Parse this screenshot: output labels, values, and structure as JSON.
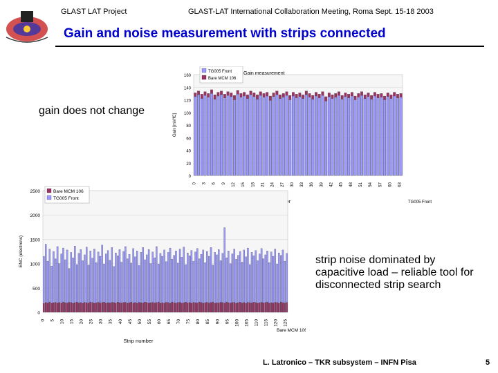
{
  "header": {
    "left": "GLAST LAT Project",
    "right": "GLAST-LAT International Collaboration Meeting, Roma Sept. 15-18 2003"
  },
  "slide": {
    "title": "Gain and noise measurement with strips connected",
    "gain_caption": "gain does not change",
    "noise_caption": "strip noise dominated by capacitive load – reliable tool for disconnected strip search"
  },
  "footer": {
    "credit": "L. Latronico – TKR subsystem – INFN Pisa",
    "page": "5"
  },
  "colors": {
    "title": "#0000cc",
    "bar_front": "#9999ff",
    "bar_bare": "#993366"
  },
  "chart_data": [
    {
      "type": "bar",
      "title": "Gain measurement",
      "ylabel": "Gain [mV/fC]",
      "xlabel": "Strip number",
      "ylim": [
        0,
        160
      ],
      "yticks": [
        0,
        20,
        40,
        60,
        80,
        100,
        120,
        140,
        160
      ],
      "xticks": [
        "0",
        "3",
        "6",
        "9",
        "12",
        "15",
        "18",
        "21",
        "24",
        "27",
        "30",
        "33",
        "36",
        "39",
        "42",
        "45",
        "48",
        "51",
        "54",
        "57",
        "60",
        "63"
      ],
      "legend": [
        "TG005 Front",
        "Bare MCM 106"
      ],
      "back_label": "TG005 Front",
      "series": [
        {
          "name": "TG005 Front",
          "values": [
            125,
            128,
            122,
            127,
            124,
            130,
            121,
            126,
            128,
            123,
            127,
            125,
            120,
            129,
            124,
            126,
            122,
            128,
            125,
            121,
            127,
            124,
            126,
            119,
            125,
            128,
            122,
            124,
            127,
            120,
            126,
            123,
            125,
            122,
            128,
            124,
            121,
            126,
            123,
            127,
            118,
            125,
            122,
            124,
            127,
            121,
            125,
            123,
            126,
            120,
            124,
            127,
            122,
            125,
            121,
            126,
            123,
            124,
            120,
            125,
            122,
            126,
            123,
            124
          ]
        },
        {
          "name": "Bare MCM 106",
          "values": [
            131,
            134,
            129,
            133,
            130,
            136,
            128,
            132,
            134,
            129,
            133,
            131,
            127,
            135,
            130,
            132,
            128,
            134,
            131,
            128,
            133,
            130,
            132,
            126,
            131,
            134,
            128,
            130,
            133,
            127,
            132,
            129,
            131,
            128,
            134,
            130,
            127,
            132,
            129,
            133,
            125,
            131,
            128,
            130,
            133,
            127,
            131,
            129,
            132,
            126,
            130,
            133,
            128,
            131,
            127,
            132,
            129,
            130,
            126,
            131,
            128,
            132,
            129,
            130
          ]
        }
      ]
    },
    {
      "type": "bar",
      "title": "",
      "ylabel": "ENC (electrons)",
      "xlabel": "Strip number",
      "ylim": [
        0,
        2500
      ],
      "yticks": [
        0,
        500,
        1000,
        1500,
        2000,
        2500
      ],
      "xticks": [
        "0",
        "5",
        "10",
        "15",
        "20",
        "25",
        "30",
        "35",
        "40",
        "45",
        "50",
        "55",
        "60",
        "65",
        "70",
        "75",
        "80",
        "85",
        "90",
        "95",
        "100",
        "105",
        "110",
        "115",
        "120",
        "125"
      ],
      "legend": [
        "Bare MCM 106",
        "TG005 Front"
      ],
      "back_label": "Bare MCM 106",
      "series": [
        {
          "name": "TG005 Front",
          "values": [
            1150,
            1400,
            1050,
            1300,
            950,
            1250,
            1100,
            1350,
            1000,
            1200,
            1320,
            1080,
            1280,
            900,
            1230,
            1120,
            1360,
            980,
            1210,
            1290,
            1060,
            1180,
            1340,
            970,
            1260,
            1110,
            1300,
            1020,
            1240,
            1150,
            1380,
            990,
            1200,
            1270,
            1070,
            1330,
            940,
            1220,
            1160,
            1290,
            1030,
            1250,
            1350,
            1100,
            1190,
            1010,
            1310,
            1140,
            1260,
            960,
            1230,
            1330,
            1080,
            1180,
            1290,
            1000,
            1240,
            1120,
            1350,
            990,
            1210,
            1150,
            1280,
            1040,
            1230,
            1320,
            1090,
            1170,
            1260,
            1010,
            1300,
            1130,
            1340,
            980,
            1220,
            1160,
            1270,
            1050,
            1240,
            1310,
            1100,
            1190,
            1280,
            1020,
            1250,
            1150,
            1330,
            970,
            1230,
            1180,
            1290,
            1060,
            1210,
            1740,
            1120,
            1260,
            1000,
            1200,
            1300,
            1090,
            1170,
            1250,
            1030,
            1280,
            1140,
            1320,
            980,
            1230,
            1160,
            1270,
            1060,
            1200,
            1310,
            1100,
            1180,
            1260,
            1020,
            1240,
            1150,
            1300,
            990,
            1220,
            1170,
            1280,
            1050,
            1210
          ]
        },
        {
          "name": "Bare MCM 106",
          "values": [
            180,
            200,
            190,
            210,
            185,
            195,
            205,
            190,
            200,
            185,
            210,
            195,
            190,
            205,
            200,
            185,
            195,
            210,
            190,
            200,
            185,
            205,
            195,
            190,
            210,
            200,
            185,
            195,
            205,
            190,
            200,
            210,
            185,
            195,
            190,
            205,
            200,
            185,
            210,
            195,
            190,
            200,
            205,
            185,
            195,
            210,
            190,
            200,
            185,
            205,
            195,
            190,
            210,
            200,
            185,
            195,
            205,
            190,
            200,
            210,
            185,
            195,
            190,
            205,
            200,
            185,
            210,
            195,
            190,
            200,
            205,
            185,
            195,
            210,
            190,
            200,
            185,
            205,
            195,
            190,
            210,
            200,
            185,
            195,
            205,
            190,
            200,
            210,
            185,
            195,
            190,
            205,
            200,
            185,
            210,
            195,
            190,
            200,
            205,
            185,
            195,
            210,
            190,
            200,
            185,
            205,
            195,
            190,
            210,
            200,
            185,
            195,
            205,
            190,
            200,
            210,
            185,
            195,
            190,
            205,
            200,
            185,
            210,
            195,
            190,
            200
          ]
        }
      ]
    }
  ]
}
